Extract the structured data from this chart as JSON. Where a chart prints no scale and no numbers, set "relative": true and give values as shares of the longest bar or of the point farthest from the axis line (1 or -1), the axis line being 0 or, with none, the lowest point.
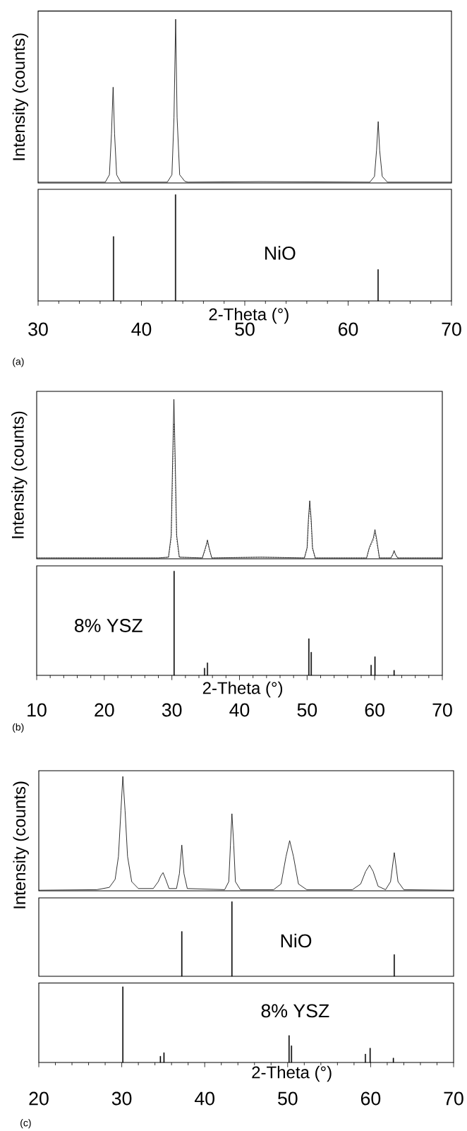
{
  "chart_data": [
    {
      "type": "line",
      "relative": true,
      "xlim": [
        30,
        70
      ],
      "tick_labels": false,
      "marker": "none",
      "line_style": "solid",
      "color": "#000000",
      "ylabel": "Intensity (counts)",
      "x": [
        30,
        36.5,
        36.9,
        37.1,
        37.26,
        37.4,
        37.6,
        38,
        42.5,
        42.95,
        43.15,
        43.31,
        43.45,
        43.7,
        44.2,
        44.5,
        51.5,
        62.1,
        62.55,
        62.75,
        62.91,
        63.05,
        63.3,
        63.8,
        70
      ],
      "values": [
        0.005,
        0.005,
        0.05,
        0.3,
        0.585,
        0.3,
        0.05,
        0.005,
        0.005,
        0.05,
        0.4,
        1,
        0.4,
        0.05,
        0.01,
        0.005,
        0.008,
        0.005,
        0.04,
        0.2,
        0.375,
        0.2,
        0.04,
        0.005,
        0.005
      ]
    },
    {
      "type": "bar",
      "relative": true,
      "xlim": [
        30,
        70
      ],
      "tick_labels": "x",
      "color": "#000000",
      "xlabel": "2-Theta (°)",
      "annotations": [
        "NiO",
        "(a)"
      ],
      "x": [
        37.3,
        43.3,
        62.9
      ],
      "values": [
        0.606,
        1,
        0.296
      ],
      "xticks": [
        30,
        {
          "value": 32,
          "label": null
        },
        {
          "value": 34,
          "label": null
        },
        {
          "value": 36,
          "label": null
        },
        {
          "value": 38,
          "label": null
        },
        40,
        {
          "value": 42,
          "label": null
        },
        {
          "value": 44,
          "label": null
        },
        {
          "value": 46,
          "label": null
        },
        {
          "value": 48,
          "label": null
        },
        50,
        {
          "value": 52,
          "label": null
        },
        {
          "value": 54,
          "label": null
        },
        {
          "value": 56,
          "label": null
        },
        {
          "value": 58,
          "label": null
        },
        60,
        {
          "value": 62,
          "label": null
        },
        {
          "value": 64,
          "label": null
        },
        {
          "value": 66,
          "label": null
        },
        {
          "value": 68,
          "label": null
        },
        70
      ]
    },
    {
      "type": "line",
      "relative": true,
      "xlim": [
        10,
        70
      ],
      "tick_labels": false,
      "marker": "none",
      "ylabel": "Intensity (counts)",
      "x": [
        10,
        20,
        28,
        29.5,
        29.9,
        30.1,
        30.3,
        30.5,
        30.7,
        31.1,
        34.5,
        34.9,
        35.1,
        35.26,
        35.5,
        35.9,
        43.2,
        49.6,
        50.0,
        50.2,
        50.39,
        50.6,
        50.8,
        51.2,
        58.8,
        59.2,
        59.5,
        59.8,
        60.04,
        60.3,
        60.7,
        62.4,
        62.7,
        62.87,
        63.05,
        63.4,
        70
      ],
      "series": [
        {
          "color": "#000000",
          "line_style": "solid",
          "values": [
            0.005,
            0.005,
            0.005,
            0.01,
            0.15,
            0.6,
            1,
            0.6,
            0.15,
            0.01,
            0.005,
            0.06,
            0.09,
            0.118,
            0.07,
            0.005,
            0.01,
            0.005,
            0.07,
            0.25,
            0.364,
            0.25,
            0.07,
            0.005,
            0.005,
            0.07,
            0.1,
            0.13,
            0.183,
            0.12,
            0.005,
            0.005,
            0.03,
            0.052,
            0.03,
            0.005,
            0.005
          ]
        },
        {
          "color": "#000000",
          "line_style": "dotted",
          "values": [
            0.005,
            0.005,
            0.005,
            0.01,
            0.12,
            0.5,
            0.85,
            0.5,
            0.12,
            0.01,
            0.005,
            0.05,
            0.08,
            0.1,
            0.06,
            0.005,
            0.01,
            0.005,
            0.06,
            0.22,
            0.32,
            0.22,
            0.06,
            0.005,
            0.005,
            0.06,
            0.09,
            0.11,
            0.16,
            0.1,
            0.005,
            0.005,
            0.025,
            0.045,
            0.025,
            0.005,
            0.005
          ]
        }
      ]
    },
    {
      "type": "bar",
      "relative": true,
      "xlim": [
        10,
        70
      ],
      "tick_labels": "x",
      "color": "#000000",
      "xlabel": "2-Theta (°)",
      "annotations": [
        "8% YSZ",
        "(b)"
      ],
      "x": [
        30.33,
        34.83,
        35.26,
        50.26,
        50.61,
        59.47,
        60.04,
        62.87
      ],
      "values": [
        1,
        0.069,
        0.121,
        0.352,
        0.222,
        0.098,
        0.179,
        0.049
      ],
      "xticks": [
        10,
        {
          "value": 12,
          "label": null
        },
        {
          "value": 14,
          "label": null
        },
        {
          "value": 16,
          "label": null
        },
        {
          "value": 18,
          "label": null
        },
        20,
        {
          "value": 22,
          "label": null
        },
        {
          "value": 24,
          "label": null
        },
        {
          "value": 26,
          "label": null
        },
        {
          "value": 28,
          "label": null
        },
        30,
        {
          "value": 32,
          "label": null
        },
        {
          "value": 34,
          "label": null
        },
        {
          "value": 36,
          "label": null
        },
        {
          "value": 38,
          "label": null
        },
        40,
        {
          "value": 42,
          "label": null
        },
        {
          "value": 44,
          "label": null
        },
        {
          "value": 46,
          "label": null
        },
        {
          "value": 48,
          "label": null
        },
        50,
        {
          "value": 52,
          "label": null
        },
        {
          "value": 54,
          "label": null
        },
        {
          "value": 56,
          "label": null
        },
        {
          "value": 58,
          "label": null
        },
        60,
        {
          "value": 62,
          "label": null
        },
        {
          "value": 64,
          "label": null
        },
        {
          "value": 66,
          "label": null
        },
        {
          "value": 68,
          "label": null
        },
        70
      ]
    },
    {
      "type": "line",
      "relative": true,
      "xlim": [
        20,
        70
      ],
      "tick_labels": false,
      "marker": "none",
      "line_style": "solid",
      "color": "#000000",
      "ylabel": "Intensity (counts)",
      "x": [
        20,
        27,
        28.5,
        29.2,
        29.6,
        29.9,
        30.13,
        30.4,
        30.7,
        31.2,
        32,
        33.8,
        34.4,
        34.7,
        34.98,
        35.3,
        35.7,
        36.6,
        36.95,
        37.24,
        37.5,
        37.9,
        42.4,
        42.9,
        43.1,
        43.28,
        43.5,
        43.7,
        44.3,
        48.3,
        49.2,
        49.8,
        50.24,
        50.7,
        51.3,
        52.3,
        57.8,
        58.8,
        59.4,
        59.87,
        60.3,
        60.9,
        61.8,
        62.4,
        62.85,
        63.3,
        64,
        70
      ],
      "values": [
        0.005,
        0.01,
        0.03,
        0.1,
        0.3,
        0.7,
        1,
        0.7,
        0.3,
        0.08,
        0.02,
        0.02,
        0.08,
        0.13,
        0.159,
        0.1,
        0.02,
        0.02,
        0.15,
        0.4,
        0.15,
        0.02,
        0.01,
        0.08,
        0.4,
        0.674,
        0.4,
        0.08,
        0.01,
        0.01,
        0.06,
        0.3,
        0.439,
        0.3,
        0.06,
        0.01,
        0.01,
        0.06,
        0.17,
        0.225,
        0.17,
        0.04,
        0.01,
        0.08,
        0.334,
        0.08,
        0.01,
        0.005
      ]
    },
    {
      "type": "bar",
      "relative": true,
      "xlim": [
        20,
        70
      ],
      "tick_labels": false,
      "color": "#000000",
      "annotations": [
        "NiO"
      ],
      "x": [
        37.24,
        43.28,
        62.85
      ],
      "values": [
        0.6,
        1,
        0.292
      ]
    },
    {
      "type": "bar",
      "relative": true,
      "xlim": [
        20,
        70
      ],
      "tick_labels": "x",
      "color": "#000000",
      "xlabel": "2-Theta (°)",
      "annotations": [
        "8% YSZ",
        "(c)"
      ],
      "x": [
        30.13,
        34.66,
        35.09,
        50.17,
        50.46,
        59.37,
        59.94,
        62.74
      ],
      "values": [
        1,
        0.083,
        0.13,
        0.356,
        0.221,
        0.111,
        0.19,
        0.059
      ],
      "xticks": [
        20,
        {
          "value": 22,
          "label": null
        },
        {
          "value": 24,
          "label": null
        },
        {
          "value": 26,
          "label": null
        },
        {
          "value": 28,
          "label": null
        },
        30,
        {
          "value": 32,
          "label": null
        },
        {
          "value": 34,
          "label": null
        },
        {
          "value": 36,
          "label": null
        },
        {
          "value": 38,
          "label": null
        },
        40,
        {
          "value": 42,
          "label": null
        },
        {
          "value": 44,
          "label": null
        },
        {
          "value": 46,
          "label": null
        },
        {
          "value": 48,
          "label": null
        },
        50,
        {
          "value": 52,
          "label": null
        },
        {
          "value": 54,
          "label": null
        },
        {
          "value": 56,
          "label": null
        },
        {
          "value": 58,
          "label": null
        },
        60,
        {
          "value": 62,
          "label": null
        },
        {
          "value": 64,
          "label": null
        },
        {
          "value": 66,
          "label": null
        },
        {
          "value": 68,
          "label": null
        },
        70
      ]
    }
  ]
}
